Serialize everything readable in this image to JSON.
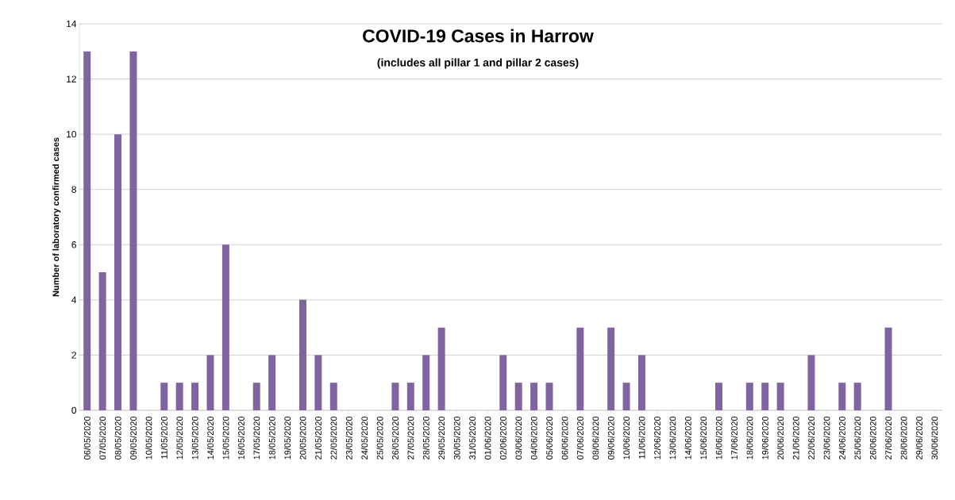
{
  "chart_data": {
    "type": "bar",
    "title": "COVID-19 Cases in Harrow",
    "subtitle": "(includes all pillar 1 and pillar 2 cases)",
    "ylabel": "Number of laboratory confirmed cases",
    "categories": [
      "06/05/2020",
      "07/05/2020",
      "08/05/2020",
      "09/05/2020",
      "10/05/2020",
      "11/05/2020",
      "12/05/2020",
      "13/05/2020",
      "14/05/2020",
      "15/05/2020",
      "16/05/2020",
      "17/05/2020",
      "18/05/2020",
      "19/05/2020",
      "20/05/2020",
      "21/05/2020",
      "22/05/2020",
      "23/05/2020",
      "24/05/2020",
      "25/05/2020",
      "26/05/2020",
      "27/05/2020",
      "28/05/2020",
      "29/05/2020",
      "30/05/2020",
      "31/05/2020",
      "01/06/2020",
      "02/06/2020",
      "03/06/2020",
      "04/06/2020",
      "05/06/2020",
      "06/06/2020",
      "07/06/2020",
      "08/06/2020",
      "09/06/2020",
      "10/06/2020",
      "11/06/2020",
      "12/06/2020",
      "13/06/2020",
      "14/06/2020",
      "15/06/2020",
      "16/06/2020",
      "17/06/2020",
      "18/06/2020",
      "19/06/2020",
      "20/06/2020",
      "21/06/2020",
      "22/06/2020",
      "23/06/2020",
      "24/06/2020",
      "25/06/2020",
      "26/06/2020",
      "27/06/2020",
      "28/06/2020",
      "29/06/2020",
      "30/06/2020"
    ],
    "values": [
      13,
      5,
      10,
      13,
      0,
      1,
      1,
      1,
      2,
      6,
      0,
      1,
      2,
      0,
      4,
      2,
      1,
      0,
      0,
      0,
      1,
      1,
      2,
      3,
      0,
      0,
      0,
      2,
      1,
      1,
      1,
      0,
      3,
      0,
      3,
      1,
      2,
      0,
      0,
      0,
      0,
      1,
      0,
      1,
      1,
      1,
      0,
      2,
      0,
      1,
      1,
      0,
      3,
      0,
      0,
      0
    ],
    "color": "#8064a2",
    "ylim": [
      0,
      14
    ],
    "yticks": [
      0,
      2,
      4,
      6,
      8,
      10,
      12,
      14
    ],
    "grid": "y"
  }
}
